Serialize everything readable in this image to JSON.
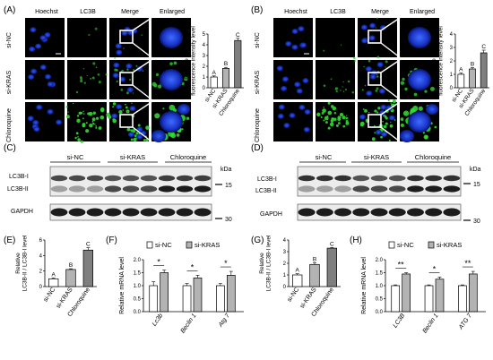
{
  "figure": {
    "panel_a": {
      "letter": "(A)",
      "columns": [
        "Hoechst",
        "LC3B",
        "Merge",
        "Enlarged"
      ],
      "rows": [
        "si-NC",
        "si-KRAS",
        "Chloroquine"
      ]
    },
    "panel_b": {
      "letter": "(B)",
      "columns": [
        "Hoechst",
        "LC3B",
        "Merge",
        "Enlarged"
      ],
      "rows": [
        "si-NC",
        "si-KRAS",
        "Chloroquine"
      ]
    },
    "panel_c": {
      "letter": "(C)",
      "groups": [
        "si-NC",
        "si-KRAS",
        "Chloroquine"
      ],
      "bands": [
        "LC3B-I",
        "LC3B-II",
        "GAPDH"
      ],
      "kda": "kDa",
      "markers": [
        "15",
        "30"
      ]
    },
    "panel_d": {
      "letter": "(D)",
      "groups": [
        "si-NC",
        "si-KRAS",
        "Chloroquine"
      ],
      "bands": [
        "LC3B-I",
        "LC3B-II",
        "GAPDH"
      ],
      "kda": "kDa",
      "markers": [
        "15",
        "30"
      ]
    },
    "panel_e": {
      "letter": "(E)"
    },
    "panel_f": {
      "letter": "(F)"
    },
    "panel_g": {
      "letter": "(G)"
    },
    "panel_h": {
      "letter": "(H)"
    }
  },
  "chart_data": [
    {
      "id": "A-bars",
      "type": "bar",
      "categories": [
        "si-NC",
        "si-KRAS",
        "Chloroquine"
      ],
      "values": [
        1.0,
        1.8,
        4.4
      ],
      "errors": [
        0.1,
        0.1,
        0.2
      ],
      "letters": [
        "A",
        "B",
        "C"
      ],
      "ylabel": "Relative LC3B fluorescence intensity level",
      "ylim": [
        0,
        5
      ],
      "yticks": [
        "0",
        "1",
        "2",
        "3",
        "4",
        "5"
      ]
    },
    {
      "id": "B-bars",
      "type": "bar",
      "categories": [
        "si-NC",
        "si-KRAS",
        "Chloroquine"
      ],
      "values": [
        1.0,
        1.4,
        2.6
      ],
      "errors": [
        0.1,
        0.1,
        0.2
      ],
      "letters": [
        "A",
        "B",
        "C"
      ],
      "ylabel": "Relative LC3B fluorescence intensity level",
      "ylim": [
        0,
        4
      ],
      "yticks": [
        "0",
        "1",
        "2",
        "3",
        "4"
      ]
    },
    {
      "id": "E",
      "type": "bar",
      "categories": [
        "si-NC",
        "si-KRAS",
        "Chloroquine"
      ],
      "values": [
        1.0,
        2.2,
        4.7
      ],
      "errors": [
        0.1,
        0.1,
        0.3
      ],
      "letters": [
        "A",
        "B",
        "C"
      ],
      "ylabel": "Relative LC3B-II / LC3B-I level",
      "ylim": [
        0,
        6
      ],
      "yticks": [
        "0",
        "2",
        "4",
        "6"
      ]
    },
    {
      "id": "F",
      "type": "bar",
      "categories": [
        "Lc3b",
        "Beclin 1",
        "Atg 7"
      ],
      "series": [
        {
          "name": "si-NC",
          "values": [
            1.0,
            1.0,
            1.0
          ],
          "errors": [
            0.15,
            0.08,
            0.08
          ]
        },
        {
          "name": "si-KRAS",
          "values": [
            1.5,
            1.3,
            1.4
          ],
          "errors": [
            0.1,
            0.1,
            0.15
          ]
        }
      ],
      "significance": [
        "*",
        "*",
        "*"
      ],
      "ylabel": "Relative mRNA level",
      "ylim": [
        0,
        2.0
      ],
      "yticks": [
        "0.0",
        "0.5",
        "1.0",
        "1.5",
        "2.0"
      ]
    },
    {
      "id": "G",
      "type": "bar",
      "categories": [
        "si-NC",
        "si-KRAS",
        "Chloroquine"
      ],
      "values": [
        1.0,
        1.9,
        3.3
      ],
      "errors": [
        0.1,
        0.15,
        0.05
      ],
      "letters": [
        "A",
        "B",
        "C"
      ],
      "ylabel": "Relative LC3B-II / LC3B-I level",
      "ylim": [
        0,
        4
      ],
      "yticks": [
        "0",
        "1",
        "2",
        "3",
        "4"
      ]
    },
    {
      "id": "H",
      "type": "bar",
      "categories": [
        "LC3B",
        "Beclin 1",
        "ATG 7"
      ],
      "series": [
        {
          "name": "si-NC",
          "values": [
            1.0,
            1.0,
            1.0
          ],
          "errors": [
            0.03,
            0.03,
            0.03
          ]
        },
        {
          "name": "si-KRAS",
          "values": [
            1.45,
            1.25,
            1.45
          ],
          "errors": [
            0.05,
            0.08,
            0.1
          ]
        }
      ],
      "significance": [
        "**",
        "*",
        "**"
      ],
      "ylabel": "Relative mRNA level",
      "ylim": [
        0,
        2.0
      ],
      "yticks": [
        "0.0",
        "0.5",
        "1.0",
        "1.5",
        "2.0"
      ]
    }
  ]
}
